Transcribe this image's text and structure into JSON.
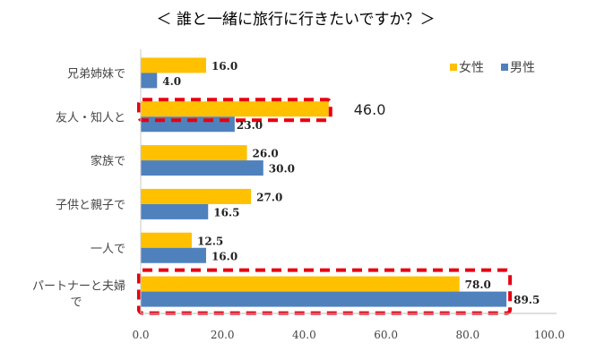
{
  "chart_data": {
    "type": "bar",
    "orientation": "horizontal",
    "title": "＜ 誰と一緒に旅行に行きたいですか？＞",
    "xlabel": "",
    "ylabel": "",
    "xlim": [
      0,
      100
    ],
    "x_ticks": [
      "0.0",
      "20.0",
      "40.0",
      "60.0",
      "80.0",
      "100.0"
    ],
    "grid": false,
    "legend_position": "top-right",
    "categories": [
      "兄弟姉妹で",
      "友人・知人と",
      "家族で",
      "子供と親子で",
      "一人で",
      "パートナーと夫婦で"
    ],
    "series": [
      {
        "name": "女性",
        "color": "#FFC000",
        "values": [
          16.0,
          46.0,
          26.0,
          27.0,
          12.5,
          78.0
        ],
        "labels": [
          "16.0",
          "46.0",
          "26.0",
          "27.0",
          "12.5",
          "78.0"
        ]
      },
      {
        "name": "男性",
        "color": "#4F81BD",
        "values": [
          4.0,
          23.0,
          30.0,
          16.5,
          16.0,
          89.5
        ],
        "labels": [
          "4.0",
          "23.0",
          "30.0",
          "16.5",
          "16.0",
          "89.5"
        ]
      }
    ],
    "highlights": [
      {
        "category": "友人・知人と",
        "series": "女性",
        "color": "#E60012",
        "style": "dashed"
      },
      {
        "category": "パートナーと夫婦で",
        "series": "both",
        "color": "#E60012",
        "style": "dashed"
      }
    ]
  }
}
